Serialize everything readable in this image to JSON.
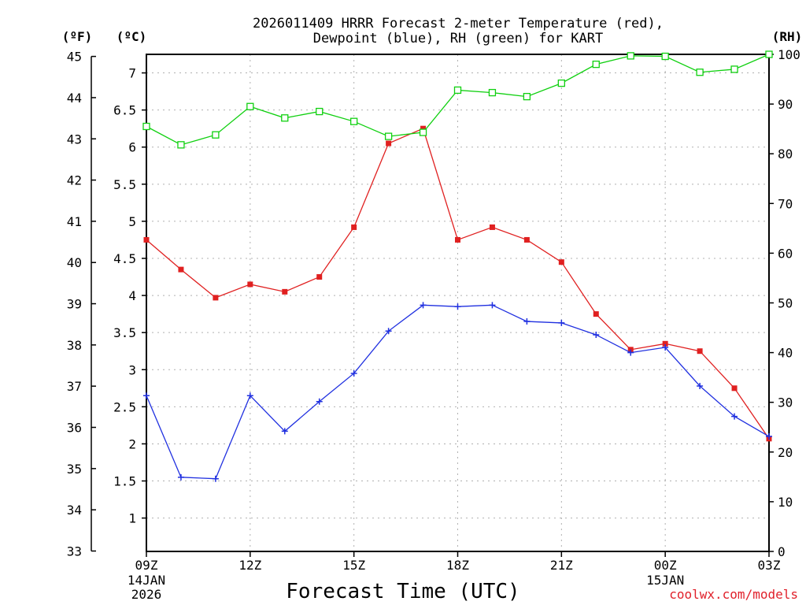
{
  "chart_data": {
    "type": "line",
    "title_line1": "2026011409 HRRR Forecast 2-meter Temperature (red),",
    "title_line2": "Dewpoint (blue), RH (green) for KART",
    "xlabel": "Forecast Time (UTC)",
    "credit": "coolwx.com/models",
    "units": {
      "fahrenheit": "(ºF)",
      "celsius": "(ºC)",
      "rh": "(RH)"
    },
    "x_hours": [
      9,
      10,
      11,
      12,
      13,
      14,
      15,
      16,
      17,
      18,
      19,
      20,
      21,
      22,
      23,
      24,
      25,
      26,
      27
    ],
    "x_ticks": [
      {
        "hour": 9,
        "label": "09Z",
        "sub": [
          "14JAN",
          "2026"
        ]
      },
      {
        "hour": 12,
        "label": "12Z",
        "sub": []
      },
      {
        "hour": 15,
        "label": "15Z",
        "sub": []
      },
      {
        "hour": 18,
        "label": "18Z",
        "sub": []
      },
      {
        "hour": 21,
        "label": "21Z",
        "sub": []
      },
      {
        "hour": 24,
        "label": "00Z",
        "sub": [
          "15JAN"
        ]
      },
      {
        "hour": 27,
        "label": "03Z",
        "sub": []
      }
    ],
    "x_range": [
      9,
      27
    ],
    "y_celsius_range": [
      0.55,
      7.25
    ],
    "y_celsius_ticks": [
      1,
      1.5,
      2,
      2.5,
      3,
      3.5,
      4,
      4.5,
      5,
      5.5,
      6,
      6.5,
      7
    ],
    "y_fahrenheit_ticks": [
      33,
      34,
      35,
      36,
      37,
      38,
      39,
      40,
      41,
      42,
      43,
      44,
      45
    ],
    "y_rh_range": [
      0,
      100
    ],
    "y_rh_ticks": [
      0,
      10,
      20,
      30,
      40,
      50,
      60,
      70,
      80,
      90,
      100
    ],
    "series": [
      {
        "name": "Temperature",
        "axis": "celsius",
        "color": "#e02020",
        "marker": "filled-square",
        "values": [
          4.75,
          4.35,
          3.97,
          4.15,
          4.05,
          4.25,
          4.92,
          6.05,
          6.25,
          4.75,
          4.92,
          4.75,
          4.45,
          3.75,
          3.27,
          3.35,
          3.25,
          2.75,
          2.07
        ]
      },
      {
        "name": "Dewpoint",
        "axis": "celsius",
        "color": "#2030e0",
        "marker": "plus",
        "values": [
          2.65,
          1.55,
          1.53,
          2.65,
          2.17,
          2.57,
          2.95,
          3.52,
          3.87,
          3.85,
          3.87,
          3.65,
          3.63,
          3.47,
          3.23,
          3.3,
          2.78,
          2.37,
          2.1
        ]
      },
      {
        "name": "RH",
        "axis": "rh",
        "color": "#10d010",
        "marker": "open-square",
        "values": [
          85.5,
          81.8,
          83.8,
          89.5,
          87.2,
          88.5,
          86.5,
          83.5,
          84.3,
          92.8,
          92.3,
          91.5,
          94.2,
          98.0,
          99.7,
          99.6,
          96.4,
          97.0,
          100.0
        ]
      }
    ]
  }
}
